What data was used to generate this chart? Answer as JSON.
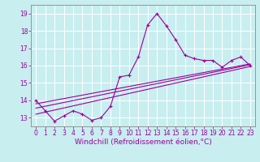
{
  "xlabel": "Windchill (Refroidissement éolien,°C)",
  "bg_color": "#c8eef0",
  "line_color": "#990099",
  "grid_color": "#ffffff",
  "xlim": [
    -0.5,
    23.5
  ],
  "ylim": [
    12.5,
    19.5
  ],
  "yticks": [
    13,
    14,
    15,
    16,
    17,
    18,
    19
  ],
  "xticks": [
    0,
    1,
    2,
    3,
    4,
    5,
    6,
    7,
    8,
    9,
    10,
    11,
    12,
    13,
    14,
    15,
    16,
    17,
    18,
    19,
    20,
    21,
    22,
    23
  ],
  "xtick_labels": [
    "0",
    "1",
    "2",
    "3",
    "4",
    "5",
    "6",
    "7",
    "8",
    "9",
    "10",
    "11",
    "12",
    "13",
    "14",
    "15",
    "16",
    "17",
    "18",
    "19",
    "20",
    "21",
    "22",
    "23"
  ],
  "curve_x": [
    0,
    1,
    2,
    3,
    4,
    5,
    6,
    7,
    8,
    9,
    10,
    11,
    12,
    13,
    14,
    15,
    16,
    17,
    18,
    19,
    20,
    21,
    22,
    23
  ],
  "curve_y": [
    14.0,
    13.4,
    12.8,
    13.1,
    13.4,
    13.2,
    12.85,
    13.0,
    13.65,
    15.35,
    15.45,
    16.5,
    18.35,
    19.0,
    18.3,
    17.5,
    16.6,
    16.4,
    16.3,
    16.3,
    15.9,
    16.3,
    16.5,
    16.0
  ],
  "line1_x": [
    0,
    23
  ],
  "line1_y": [
    13.55,
    16.05
  ],
  "line2_x": [
    0,
    23
  ],
  "line2_y": [
    13.2,
    15.95
  ],
  "line3_x": [
    0,
    23
  ],
  "line3_y": [
    13.8,
    16.1
  ],
  "tick_fontsize": 5.5,
  "xlabel_fontsize": 6.5
}
